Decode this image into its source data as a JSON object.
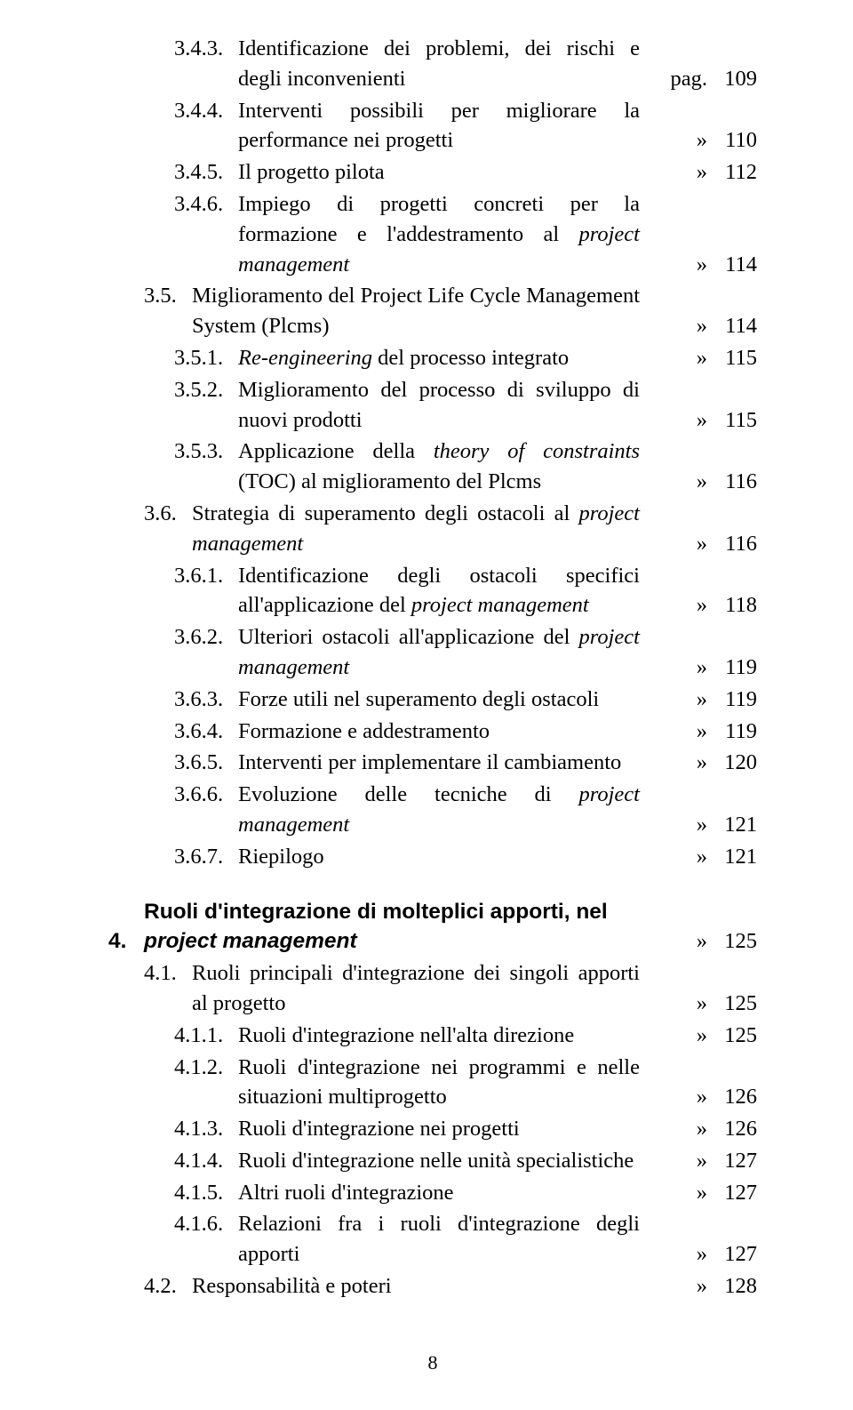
{
  "colors": {
    "bg": "#ffffff",
    "text": "#000000"
  },
  "typography": {
    "font_family": "Times New Roman",
    "body_pt": 18,
    "line_height": 1.38
  },
  "page_label": "pag.",
  "raquo": "»",
  "entries": [
    {
      "level": 2,
      "num": "3.4.3.",
      "text": "Identificazione dei problemi, dei rischi e degli inconvenienti",
      "marker": "pag.",
      "page": "109"
    },
    {
      "level": 2,
      "num": "3.4.4.",
      "text": "Interventi possibili per migliorare la performance nei progetti",
      "marker": "»",
      "page": "110"
    },
    {
      "level": 2,
      "num": "3.4.5.",
      "text": "Il progetto pilota",
      "marker": "»",
      "page": "112"
    },
    {
      "level": 2,
      "num": "3.4.6.",
      "text_parts": [
        "Impiego di progetti concreti per la formazione e l'addestramento al ",
        {
          "it": "project management"
        }
      ],
      "marker": "»",
      "page": "114"
    },
    {
      "level": 1,
      "num": "3.5.",
      "text": "Miglioramento del Project Life Cycle Management System (Plcms)",
      "marker": "»",
      "page": "114"
    },
    {
      "level": 2,
      "num": "3.5.1.",
      "text_parts": [
        {
          "it": "Re-engineering"
        },
        " del processo integrato"
      ],
      "marker": "»",
      "page": "115"
    },
    {
      "level": 2,
      "num": "3.5.2.",
      "text": "Miglioramento del processo di sviluppo di nuovi prodotti",
      "marker": "»",
      "page": "115"
    },
    {
      "level": 2,
      "num": "3.5.3.",
      "text_parts": [
        "Applicazione della ",
        {
          "it": "theory of constraints"
        },
        " (TOC) al miglioramento del Plcms"
      ],
      "marker": "»",
      "page": "116"
    },
    {
      "level": 1,
      "num": "3.6.",
      "text_parts": [
        "Strategia di superamento degli ostacoli al ",
        {
          "it": "project management"
        }
      ],
      "marker": "»",
      "page": "116"
    },
    {
      "level": 2,
      "num": "3.6.1.",
      "text_parts": [
        "Identificazione degli ostacoli specifici all'applicazione del ",
        {
          "it": "project management"
        }
      ],
      "marker": "»",
      "page": "118"
    },
    {
      "level": 2,
      "num": "3.6.2.",
      "text_parts": [
        "Ulteriori ostacoli all'applicazione del ",
        {
          "it": "project management"
        }
      ],
      "marker": "»",
      "page": "119"
    },
    {
      "level": 2,
      "num": "3.6.3.",
      "text": "Forze utili nel superamento degli ostacoli",
      "marker": "»",
      "page": "119"
    },
    {
      "level": 2,
      "num": "3.6.4.",
      "text": "Formazione e addestramento",
      "marker": "»",
      "page": "119"
    },
    {
      "level": 2,
      "num": "3.6.5.",
      "text": "Interventi per implementare il cambiamento",
      "marker": "»",
      "page": "120"
    },
    {
      "level": 2,
      "num": "3.6.6.",
      "text_parts": [
        "Evoluzione delle tecniche di ",
        {
          "it": "project management"
        }
      ],
      "marker": "»",
      "page": "121"
    },
    {
      "level": 2,
      "num": "3.6.7.",
      "text": "Riepilogo",
      "marker": "»",
      "page": "121"
    },
    {
      "chapter": true,
      "num": "4.",
      "text_parts": [
        "Ruoli d'integrazione di molteplici apporti, nel ",
        {
          "it": "project management"
        }
      ],
      "marker": "»",
      "page": "125"
    },
    {
      "level": 1,
      "num": "4.1.",
      "text": "Ruoli principali d'integrazione dei singoli apporti al progetto",
      "marker": "»",
      "page": "125"
    },
    {
      "level": 2,
      "num": "4.1.1.",
      "text": "Ruoli d'integrazione nell'alta direzione",
      "marker": "»",
      "page": "125"
    },
    {
      "level": 2,
      "num": "4.1.2.",
      "text": "Ruoli d'integrazione nei programmi e nelle situazioni multiprogetto",
      "marker": "»",
      "page": "126"
    },
    {
      "level": 2,
      "num": "4.1.3.",
      "text": "Ruoli d'integrazione nei progetti",
      "marker": "»",
      "page": "126"
    },
    {
      "level": 2,
      "num": "4.1.4.",
      "text": "Ruoli d'integrazione nelle unità specialistiche",
      "marker": "»",
      "page": "127"
    },
    {
      "level": 2,
      "num": "4.1.5.",
      "text": "Altri ruoli d'integrazione",
      "marker": "»",
      "page": "127"
    },
    {
      "level": 2,
      "num": "4.1.6.",
      "text": "Relazioni fra i ruoli d'integrazione degli apporti",
      "marker": "»",
      "page": "127"
    },
    {
      "level": 1,
      "num": "4.2.",
      "text": "Responsabilità e poteri",
      "marker": "»",
      "page": "128"
    }
  ],
  "page_number": "8"
}
